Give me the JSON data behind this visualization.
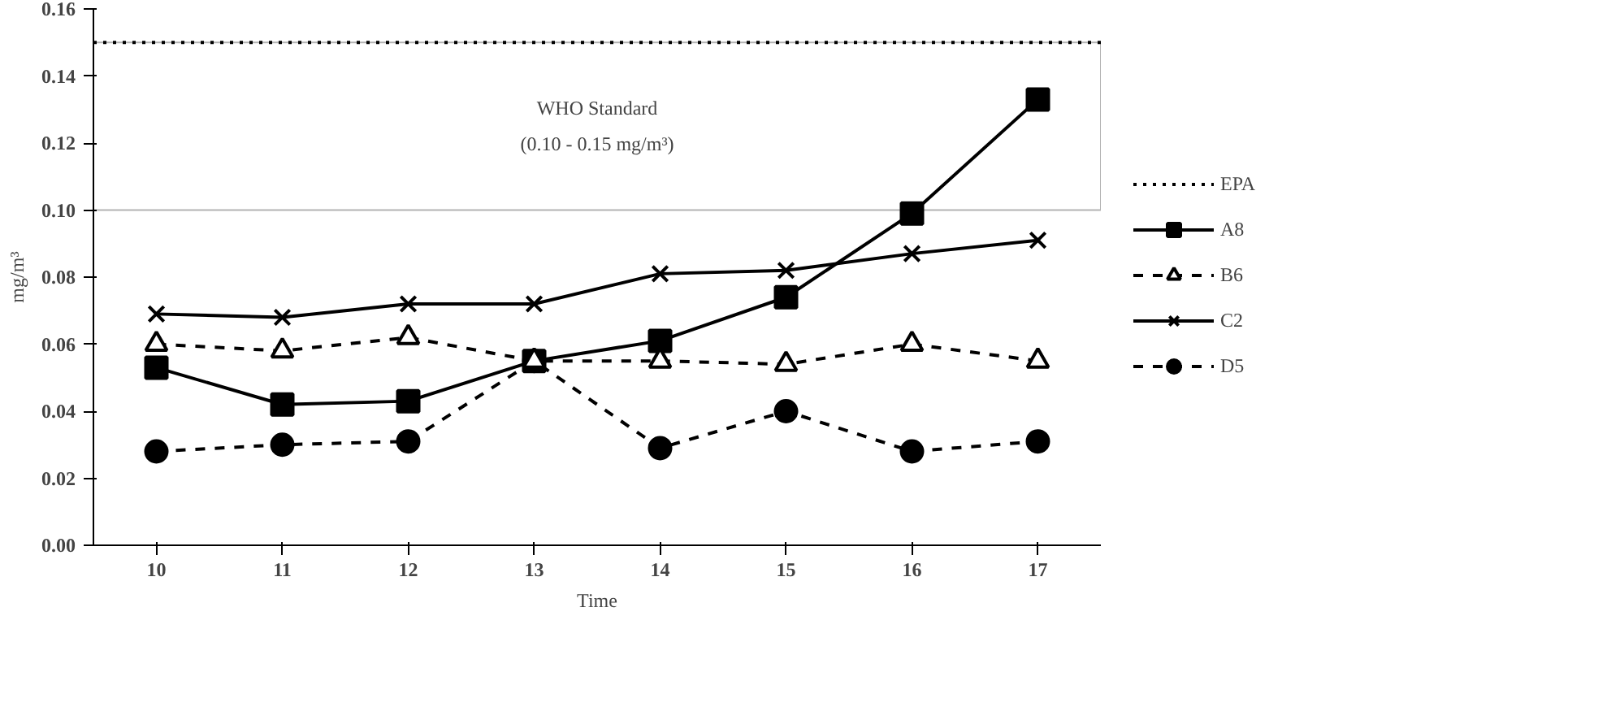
{
  "chart_data": {
    "type": "line",
    "xlabel": "Time",
    "ylabel": "mg/m³",
    "x": [
      10,
      11,
      12,
      13,
      14,
      15,
      16,
      17
    ],
    "xlim": [
      9.5,
      17.5
    ],
    "xticks": [
      10,
      11,
      12,
      13,
      14,
      15,
      16,
      17
    ],
    "ylim": [
      0,
      0.16
    ],
    "yticks": [
      {
        "value": 0,
        "label": "0.00"
      },
      {
        "value": 0.02,
        "label": "0.02"
      },
      {
        "value": 0.04,
        "label": "0.04"
      },
      {
        "value": 0.06,
        "label": "0.06"
      },
      {
        "value": 0.08,
        "label": "0.08"
      },
      {
        "value": 0.1,
        "label": "0.10"
      },
      {
        "value": 0.12,
        "label": "0.12"
      },
      {
        "value": 0.14,
        "label": "0.14"
      },
      {
        "value": 0.16,
        "label": "0.16"
      }
    ],
    "series": [
      {
        "name": "A8",
        "color": "#000000",
        "marker": "square",
        "line_style": "solid",
        "values": [
          0.053,
          0.042,
          0.043,
          0.055,
          0.061,
          0.074,
          0.099,
          0.133
        ]
      },
      {
        "name": "B6",
        "color": "#000000",
        "marker": "triangle",
        "line_style": "dashed",
        "values": [
          0.06,
          0.058,
          0.062,
          0.055,
          0.055,
          0.054,
          0.06,
          0.055
        ]
      },
      {
        "name": "C2",
        "color": "#000000",
        "marker": "cross",
        "line_style": "solid",
        "values": [
          0.069,
          0.068,
          0.072,
          0.072,
          0.081,
          0.082,
          0.087,
          0.091
        ]
      },
      {
        "name": "D5",
        "color": "#000000",
        "marker": "circle",
        "line_style": "dashed",
        "values": [
          0.028,
          0.03,
          0.031,
          0.055,
          0.029,
          0.04,
          0.028,
          0.031
        ]
      }
    ],
    "ref_lines": [
      {
        "axis": "y",
        "value": 0.15,
        "label": "EPA",
        "color": "#000000",
        "line_style": "dotted"
      }
    ],
    "bands": [
      {
        "axis": "y",
        "from": 0.1,
        "to": 0.15,
        "label": "WHO Standard\n(0.10 - 0.15 mg/m³)",
        "color": "#000000"
      }
    ],
    "grid": false,
    "legend": "right"
  }
}
